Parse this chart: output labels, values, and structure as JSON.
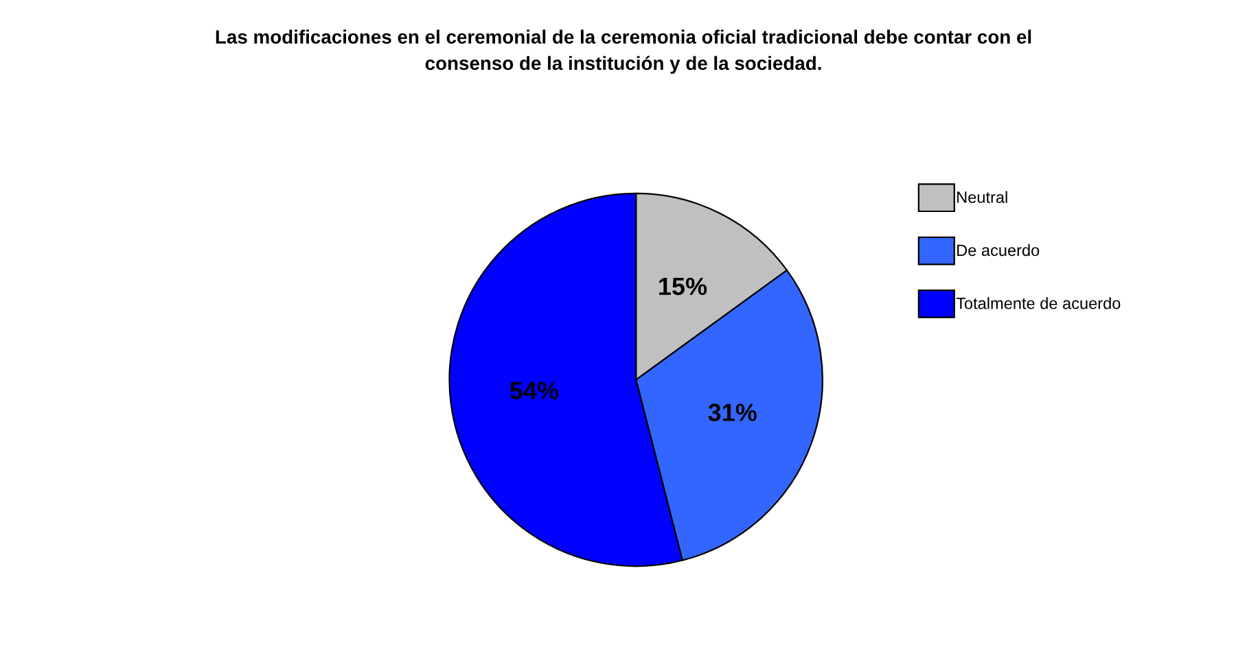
{
  "chart_data": {
    "type": "pie",
    "title": "Las modificaciones en el ceremonial de la ceremonia oficial tradicional debe contar con el\nconsenso de la institución y de la sociedad.",
    "categories": [
      "Neutral",
      "De acuerdo",
      "Totalmente de acuerdo"
    ],
    "values": [
      15,
      31,
      54
    ],
    "colors": [
      "#c0c0c0",
      "#3366ff",
      "#0000ff"
    ],
    "value_labels": [
      "15%",
      "31%",
      "54%"
    ],
    "legend": "right"
  }
}
